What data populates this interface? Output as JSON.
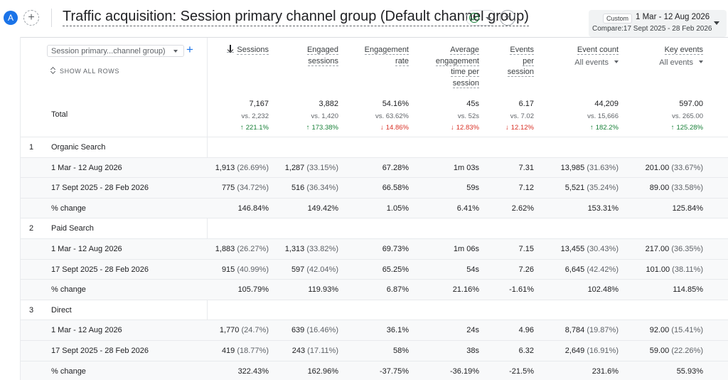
{
  "header": {
    "avatar_letter": "A",
    "title": "Traffic acquisition: Session primary channel group (Default channel group)",
    "date_badge": "Custom",
    "date_range": "1 Mar - 12 Aug 2026",
    "compare_range": "Compare:17 Sept 2025 - 28 Feb 2026"
  },
  "table": {
    "dimension_select": "Session primary...channel group)",
    "show_all_rows": "SHOW ALL ROWS",
    "total_label": "Total",
    "columns": [
      {
        "lines": [
          "Sessions"
        ],
        "sub": ""
      },
      {
        "lines": [
          "Engaged",
          "sessions"
        ],
        "sub": ""
      },
      {
        "lines": [
          "Engagement",
          "rate"
        ],
        "sub": ""
      },
      {
        "lines": [
          "Average",
          "engagement",
          "time per",
          "session"
        ],
        "sub": ""
      },
      {
        "lines": [
          "Events",
          "per",
          "session"
        ],
        "sub": ""
      },
      {
        "lines": [
          "Event count"
        ],
        "sub": "All events"
      },
      {
        "lines": [
          "Key events"
        ],
        "sub": "All events"
      }
    ],
    "totals": [
      {
        "value": "7,167",
        "prev": "vs. 2,232",
        "change": "221.1%",
        "dir": "up"
      },
      {
        "value": "3,882",
        "prev": "vs. 1,420",
        "change": "173.38%",
        "dir": "up"
      },
      {
        "value": "54.16%",
        "prev": "vs. 63.62%",
        "change": "14.86%",
        "dir": "down"
      },
      {
        "value": "45s",
        "prev": "vs. 52s",
        "change": "12.83%",
        "dir": "down"
      },
      {
        "value": "6.17",
        "prev": "vs. 7.02",
        "change": "12.12%",
        "dir": "down"
      },
      {
        "value": "44,209",
        "prev": "vs. 15,666",
        "change": "182.2%",
        "dir": "up"
      },
      {
        "value": "597.00",
        "prev": "vs. 265.00",
        "change": "125.28%",
        "dir": "up"
      }
    ],
    "groups": [
      {
        "index": "1",
        "name": "Organic Search",
        "rows": [
          {
            "label": "1 Mar - 12 Aug 2026",
            "cells": [
              {
                "v": "1,913",
                "p": "(26.69%)"
              },
              {
                "v": "1,287",
                "p": "(33.15%)"
              },
              {
                "v": "67.28%",
                "p": ""
              },
              {
                "v": "1m 03s",
                "p": ""
              },
              {
                "v": "7.31",
                "p": ""
              },
              {
                "v": "13,985",
                "p": "(31.63%)"
              },
              {
                "v": "201.00",
                "p": "(33.67%)"
              }
            ]
          },
          {
            "label": "17 Sept 2025 - 28 Feb 2026",
            "cells": [
              {
                "v": "775",
                "p": "(34.72%)"
              },
              {
                "v": "516",
                "p": "(36.34%)"
              },
              {
                "v": "66.58%",
                "p": ""
              },
              {
                "v": "59s",
                "p": ""
              },
              {
                "v": "7.12",
                "p": ""
              },
              {
                "v": "5,521",
                "p": "(35.24%)"
              },
              {
                "v": "89.00",
                "p": "(33.58%)"
              }
            ]
          },
          {
            "label": "% change",
            "cells": [
              {
                "v": "146.84%",
                "p": ""
              },
              {
                "v": "149.42%",
                "p": ""
              },
              {
                "v": "1.05%",
                "p": ""
              },
              {
                "v": "6.41%",
                "p": ""
              },
              {
                "v": "2.62%",
                "p": ""
              },
              {
                "v": "153.31%",
                "p": ""
              },
              {
                "v": "125.84%",
                "p": ""
              }
            ]
          }
        ]
      },
      {
        "index": "2",
        "name": "Paid Search",
        "rows": [
          {
            "label": "1 Mar - 12 Aug 2026",
            "cells": [
              {
                "v": "1,883",
                "p": "(26.27%)"
              },
              {
                "v": "1,313",
                "p": "(33.82%)"
              },
              {
                "v": "69.73%",
                "p": ""
              },
              {
                "v": "1m 06s",
                "p": ""
              },
              {
                "v": "7.15",
                "p": ""
              },
              {
                "v": "13,455",
                "p": "(30.43%)"
              },
              {
                "v": "217.00",
                "p": "(36.35%)"
              }
            ]
          },
          {
            "label": "17 Sept 2025 - 28 Feb 2026",
            "cells": [
              {
                "v": "915",
                "p": "(40.99%)"
              },
              {
                "v": "597",
                "p": "(42.04%)"
              },
              {
                "v": "65.25%",
                "p": ""
              },
              {
                "v": "54s",
                "p": ""
              },
              {
                "v": "7.26",
                "p": ""
              },
              {
                "v": "6,645",
                "p": "(42.42%)"
              },
              {
                "v": "101.00",
                "p": "(38.11%)"
              }
            ]
          },
          {
            "label": "% change",
            "cells": [
              {
                "v": "105.79%",
                "p": ""
              },
              {
                "v": "119.93%",
                "p": ""
              },
              {
                "v": "6.87%",
                "p": ""
              },
              {
                "v": "21.16%",
                "p": ""
              },
              {
                "v": "-1.61%",
                "p": ""
              },
              {
                "v": "102.48%",
                "p": ""
              },
              {
                "v": "114.85%",
                "p": ""
              }
            ]
          }
        ]
      },
      {
        "index": "3",
        "name": "Direct",
        "rows": [
          {
            "label": "1 Mar - 12 Aug 2026",
            "cells": [
              {
                "v": "1,770",
                "p": "(24.7%)"
              },
              {
                "v": "639",
                "p": "(16.46%)"
              },
              {
                "v": "36.1%",
                "p": ""
              },
              {
                "v": "24s",
                "p": ""
              },
              {
                "v": "4.96",
                "p": ""
              },
              {
                "v": "8,784",
                "p": "(19.87%)"
              },
              {
                "v": "92.00",
                "p": "(15.41%)"
              }
            ]
          },
          {
            "label": "17 Sept 2025 - 28 Feb 2026",
            "cells": [
              {
                "v": "419",
                "p": "(18.77%)"
              },
              {
                "v": "243",
                "p": "(17.11%)"
              },
              {
                "v": "58%",
                "p": ""
              },
              {
                "v": "38s",
                "p": ""
              },
              {
                "v": "6.32",
                "p": ""
              },
              {
                "v": "2,649",
                "p": "(16.91%)"
              },
              {
                "v": "59.00",
                "p": "(22.26%)"
              }
            ]
          },
          {
            "label": "% change",
            "cells": [
              {
                "v": "322.43%",
                "p": ""
              },
              {
                "v": "162.96%",
                "p": ""
              },
              {
                "v": "-37.75%",
                "p": ""
              },
              {
                "v": "-36.19%",
                "p": ""
              },
              {
                "v": "-21.5%",
                "p": ""
              },
              {
                "v": "231.6%",
                "p": ""
              },
              {
                "v": "55.93%",
                "p": ""
              }
            ]
          }
        ]
      }
    ]
  },
  "colors": {
    "accent": "#1a73e8",
    "positive": "#188038",
    "negative": "#d93025",
    "row_tint": "#f8f9fa"
  },
  "icons": {
    "sessions_sort": "arrow-down-icon",
    "status": "check-circle-icon",
    "add": "plus-icon"
  }
}
